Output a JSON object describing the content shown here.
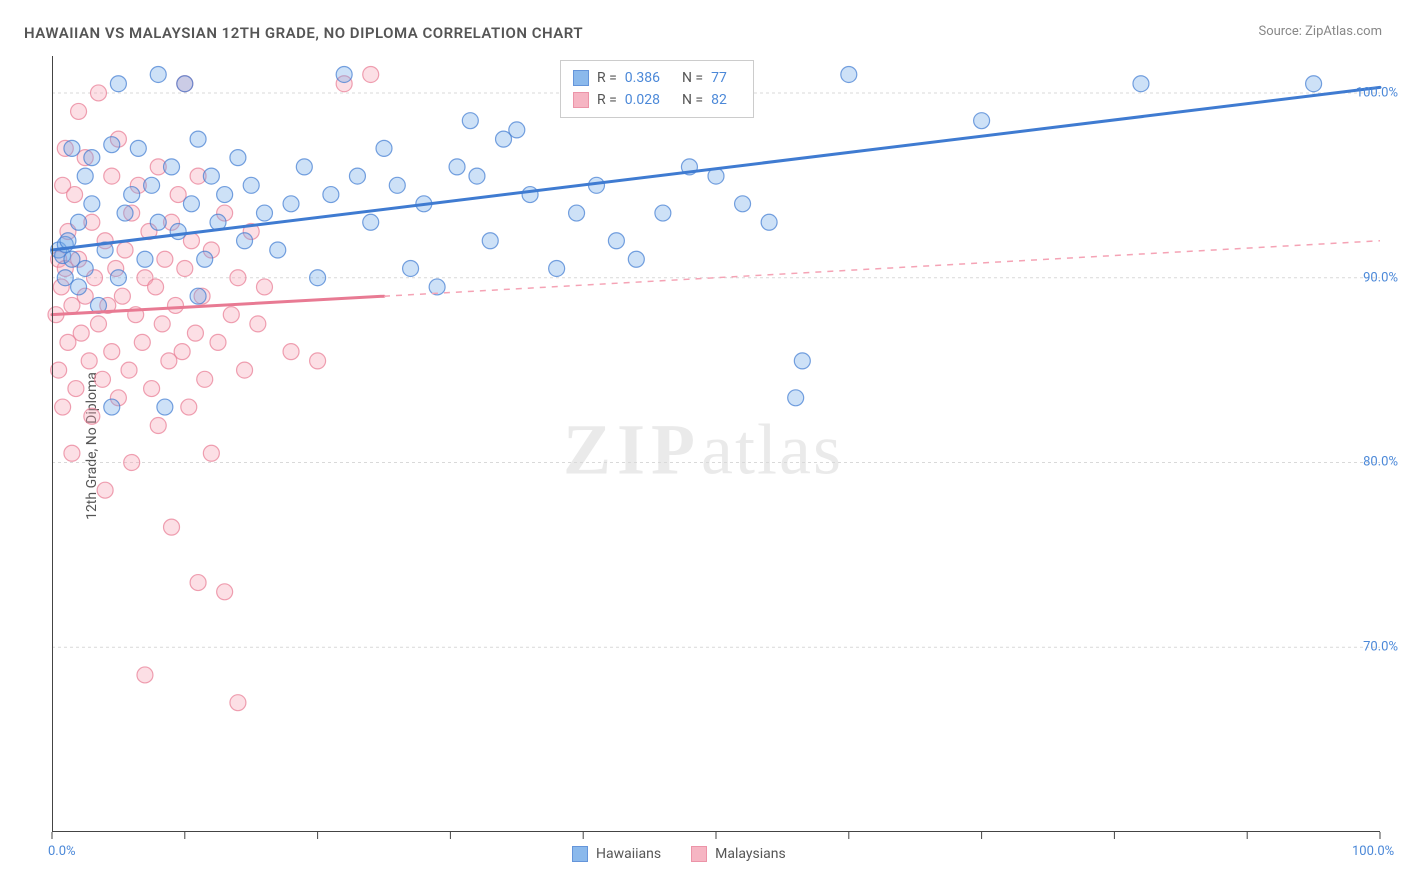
{
  "title": "HAWAIIAN VS MALAYSIAN 12TH GRADE, NO DIPLOMA CORRELATION CHART",
  "source": "Source: ZipAtlas.com",
  "y_axis_label": "12th Grade, No Diploma",
  "watermark_a": "ZIP",
  "watermark_b": "atlas",
  "chart": {
    "type": "scatter",
    "background_color": "#ffffff",
    "grid_color": "#d9d9d9",
    "axis_color": "#444444",
    "label_fontsize": 14,
    "title_fontsize": 15,
    "tick_label_color": "#4b88d8",
    "xlim": [
      0,
      100
    ],
    "ylim": [
      60,
      102
    ],
    "x_ticks": [
      0,
      10,
      20,
      30,
      40,
      50,
      60,
      70,
      80,
      90,
      100
    ],
    "x_tick_labels": {
      "0": "0.0%",
      "100": "100.0%"
    },
    "y_ticks": [
      70,
      80,
      90,
      100
    ],
    "y_tick_labels": {
      "70": "70.0%",
      "80": "80.0%",
      "90": "90.0%",
      "100": "100.0%"
    },
    "marker_radius": 8,
    "marker_fill_opacity": 0.35,
    "marker_stroke_width": 1.2,
    "line_width_solid": 3,
    "line_width_dashed": 1.5,
    "series": [
      {
        "name": "Hawaiians",
        "color": "#6fa8e8",
        "stroke": "#3f7bd1",
        "R": "0.386",
        "N": "77",
        "trend": {
          "x1": 0,
          "y1": 91.5,
          "x2": 100,
          "y2": 100.3,
          "solid_until_x": 100,
          "dash_color": "#3f7bd1"
        },
        "points": [
          [
            0.5,
            91.5
          ],
          [
            0.8,
            91.2
          ],
          [
            1.0,
            91.8
          ],
          [
            1.0,
            90.0
          ],
          [
            1.2,
            92.0
          ],
          [
            1.5,
            91.0
          ],
          [
            1.5,
            97.0
          ],
          [
            2.0,
            89.5
          ],
          [
            2.0,
            93.0
          ],
          [
            2.5,
            90.5
          ],
          [
            2.5,
            95.5
          ],
          [
            3.0,
            94.0
          ],
          [
            3.0,
            96.5
          ],
          [
            3.5,
            88.5
          ],
          [
            4.0,
            91.5
          ],
          [
            4.5,
            97.2
          ],
          [
            5.0,
            90.0
          ],
          [
            5.0,
            100.5
          ],
          [
            5.5,
            93.5
          ],
          [
            6.0,
            94.5
          ],
          [
            6.5,
            97.0
          ],
          [
            7.0,
            91.0
          ],
          [
            7.5,
            95.0
          ],
          [
            8.0,
            93.0
          ],
          [
            8.0,
            101.0
          ],
          [
            8.5,
            83.0
          ],
          [
            9.0,
            96.0
          ],
          [
            9.5,
            92.5
          ],
          [
            10.0,
            100.5
          ],
          [
            10.5,
            94.0
          ],
          [
            11.0,
            97.5
          ],
          [
            11.5,
            91.0
          ],
          [
            12.0,
            95.5
          ],
          [
            12.5,
            93.0
          ],
          [
            13.0,
            94.5
          ],
          [
            14.0,
            96.5
          ],
          [
            14.5,
            92.0
          ],
          [
            15.0,
            95.0
          ],
          [
            16.0,
            93.5
          ],
          [
            17.0,
            91.5
          ],
          [
            18.0,
            94.0
          ],
          [
            19.0,
            96.0
          ],
          [
            20.0,
            90.0
          ],
          [
            21.0,
            94.5
          ],
          [
            22.0,
            101.0
          ],
          [
            23.0,
            95.5
          ],
          [
            24.0,
            93.0
          ],
          [
            25.0,
            97.0
          ],
          [
            26.0,
            95.0
          ],
          [
            27.0,
            90.5
          ],
          [
            28.0,
            94.0
          ],
          [
            29.0,
            89.5
          ],
          [
            30.5,
            96.0
          ],
          [
            31.5,
            98.5
          ],
          [
            32.0,
            95.5
          ],
          [
            33.0,
            92.0
          ],
          [
            34.0,
            97.5
          ],
          [
            35.0,
            98.0
          ],
          [
            36.0,
            94.5
          ],
          [
            38.0,
            90.5
          ],
          [
            39.5,
            93.5
          ],
          [
            41.0,
            95.0
          ],
          [
            42.5,
            92.0
          ],
          [
            44.0,
            91.0
          ],
          [
            46.0,
            93.5
          ],
          [
            48.0,
            96.0
          ],
          [
            50.0,
            95.5
          ],
          [
            52.0,
            94.0
          ],
          [
            54.0,
            93.0
          ],
          [
            56.0,
            83.5
          ],
          [
            56.5,
            85.5
          ],
          [
            60.0,
            101.0
          ],
          [
            70.0,
            98.5
          ],
          [
            82.0,
            100.5
          ],
          [
            95.0,
            100.5
          ],
          [
            4.5,
            83.0
          ],
          [
            11.0,
            89.0
          ]
        ]
      },
      {
        "name": "Malaysians",
        "color": "#f5a3b5",
        "stroke": "#e87a93",
        "R": "0.028",
        "N": "82",
        "trend": {
          "x1": 0,
          "y1": 88.0,
          "x2": 100,
          "y2": 92.0,
          "solid_until_x": 25,
          "dash_color": "#f5a3b5"
        },
        "points": [
          [
            0.3,
            88.0
          ],
          [
            0.5,
            91.0
          ],
          [
            0.5,
            85.0
          ],
          [
            0.7,
            89.5
          ],
          [
            0.8,
            95.0
          ],
          [
            0.8,
            83.0
          ],
          [
            1.0,
            90.5
          ],
          [
            1.0,
            97.0
          ],
          [
            1.2,
            86.5
          ],
          [
            1.2,
            92.5
          ],
          [
            1.5,
            88.5
          ],
          [
            1.5,
            80.5
          ],
          [
            1.7,
            94.5
          ],
          [
            1.8,
            84.0
          ],
          [
            2.0,
            91.0
          ],
          [
            2.0,
            99.0
          ],
          [
            2.2,
            87.0
          ],
          [
            2.5,
            89.0
          ],
          [
            2.5,
            96.5
          ],
          [
            2.8,
            85.5
          ],
          [
            3.0,
            93.0
          ],
          [
            3.0,
            82.5
          ],
          [
            3.2,
            90.0
          ],
          [
            3.5,
            87.5
          ],
          [
            3.5,
            100.0
          ],
          [
            3.8,
            84.5
          ],
          [
            4.0,
            92.0
          ],
          [
            4.0,
            78.5
          ],
          [
            4.2,
            88.5
          ],
          [
            4.5,
            95.5
          ],
          [
            4.5,
            86.0
          ],
          [
            4.8,
            90.5
          ],
          [
            5.0,
            83.5
          ],
          [
            5.0,
            97.5
          ],
          [
            5.3,
            89.0
          ],
          [
            5.5,
            91.5
          ],
          [
            5.8,
            85.0
          ],
          [
            6.0,
            93.5
          ],
          [
            6.0,
            80.0
          ],
          [
            6.3,
            88.0
          ],
          [
            6.5,
            95.0
          ],
          [
            6.8,
            86.5
          ],
          [
            7.0,
            90.0
          ],
          [
            7.0,
            68.5
          ],
          [
            7.3,
            92.5
          ],
          [
            7.5,
            84.0
          ],
          [
            7.8,
            89.5
          ],
          [
            8.0,
            96.0
          ],
          [
            8.0,
            82.0
          ],
          [
            8.3,
            87.5
          ],
          [
            8.5,
            91.0
          ],
          [
            8.8,
            85.5
          ],
          [
            9.0,
            93.0
          ],
          [
            9.0,
            76.5
          ],
          [
            9.3,
            88.5
          ],
          [
            9.5,
            94.5
          ],
          [
            9.8,
            86.0
          ],
          [
            10.0,
            90.5
          ],
          [
            10.0,
            100.5
          ],
          [
            10.3,
            83.0
          ],
          [
            10.5,
            92.0
          ],
          [
            10.8,
            87.0
          ],
          [
            11.0,
            95.5
          ],
          [
            11.0,
            73.5
          ],
          [
            11.3,
            89.0
          ],
          [
            11.5,
            84.5
          ],
          [
            12.0,
            91.5
          ],
          [
            12.0,
            80.5
          ],
          [
            12.5,
            86.5
          ],
          [
            13.0,
            93.5
          ],
          [
            13.0,
            73.0
          ],
          [
            13.5,
            88.0
          ],
          [
            14.0,
            90.0
          ],
          [
            14.0,
            67.0
          ],
          [
            14.5,
            85.0
          ],
          [
            15.0,
            92.5
          ],
          [
            15.5,
            87.5
          ],
          [
            16.0,
            89.5
          ],
          [
            18.0,
            86.0
          ],
          [
            20.0,
            85.5
          ],
          [
            22.0,
            100.5
          ],
          [
            24.0,
            101.0
          ]
        ]
      }
    ],
    "legend_bottom": [
      {
        "label": "Hawaiians",
        "color": "#6fa8e8",
        "stroke": "#3f7bd1"
      },
      {
        "label": "Malaysians",
        "color": "#f5a3b5",
        "stroke": "#e87a93"
      }
    ]
  }
}
